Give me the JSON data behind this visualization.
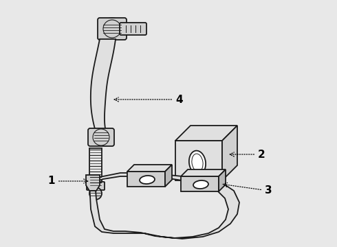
{
  "background_color": "#e8e8e8",
  "line_color": "#1a1a1a",
  "label_color": "#000000",
  "label_fontsize": 11,
  "figsize": [
    4.9,
    3.6
  ],
  "dpi": 100,
  "fill_light": "#e0e0e0",
  "fill_mid": "#d0d0d0",
  "fill_dark": "#b8b8b8",
  "fill_white": "#ffffff"
}
